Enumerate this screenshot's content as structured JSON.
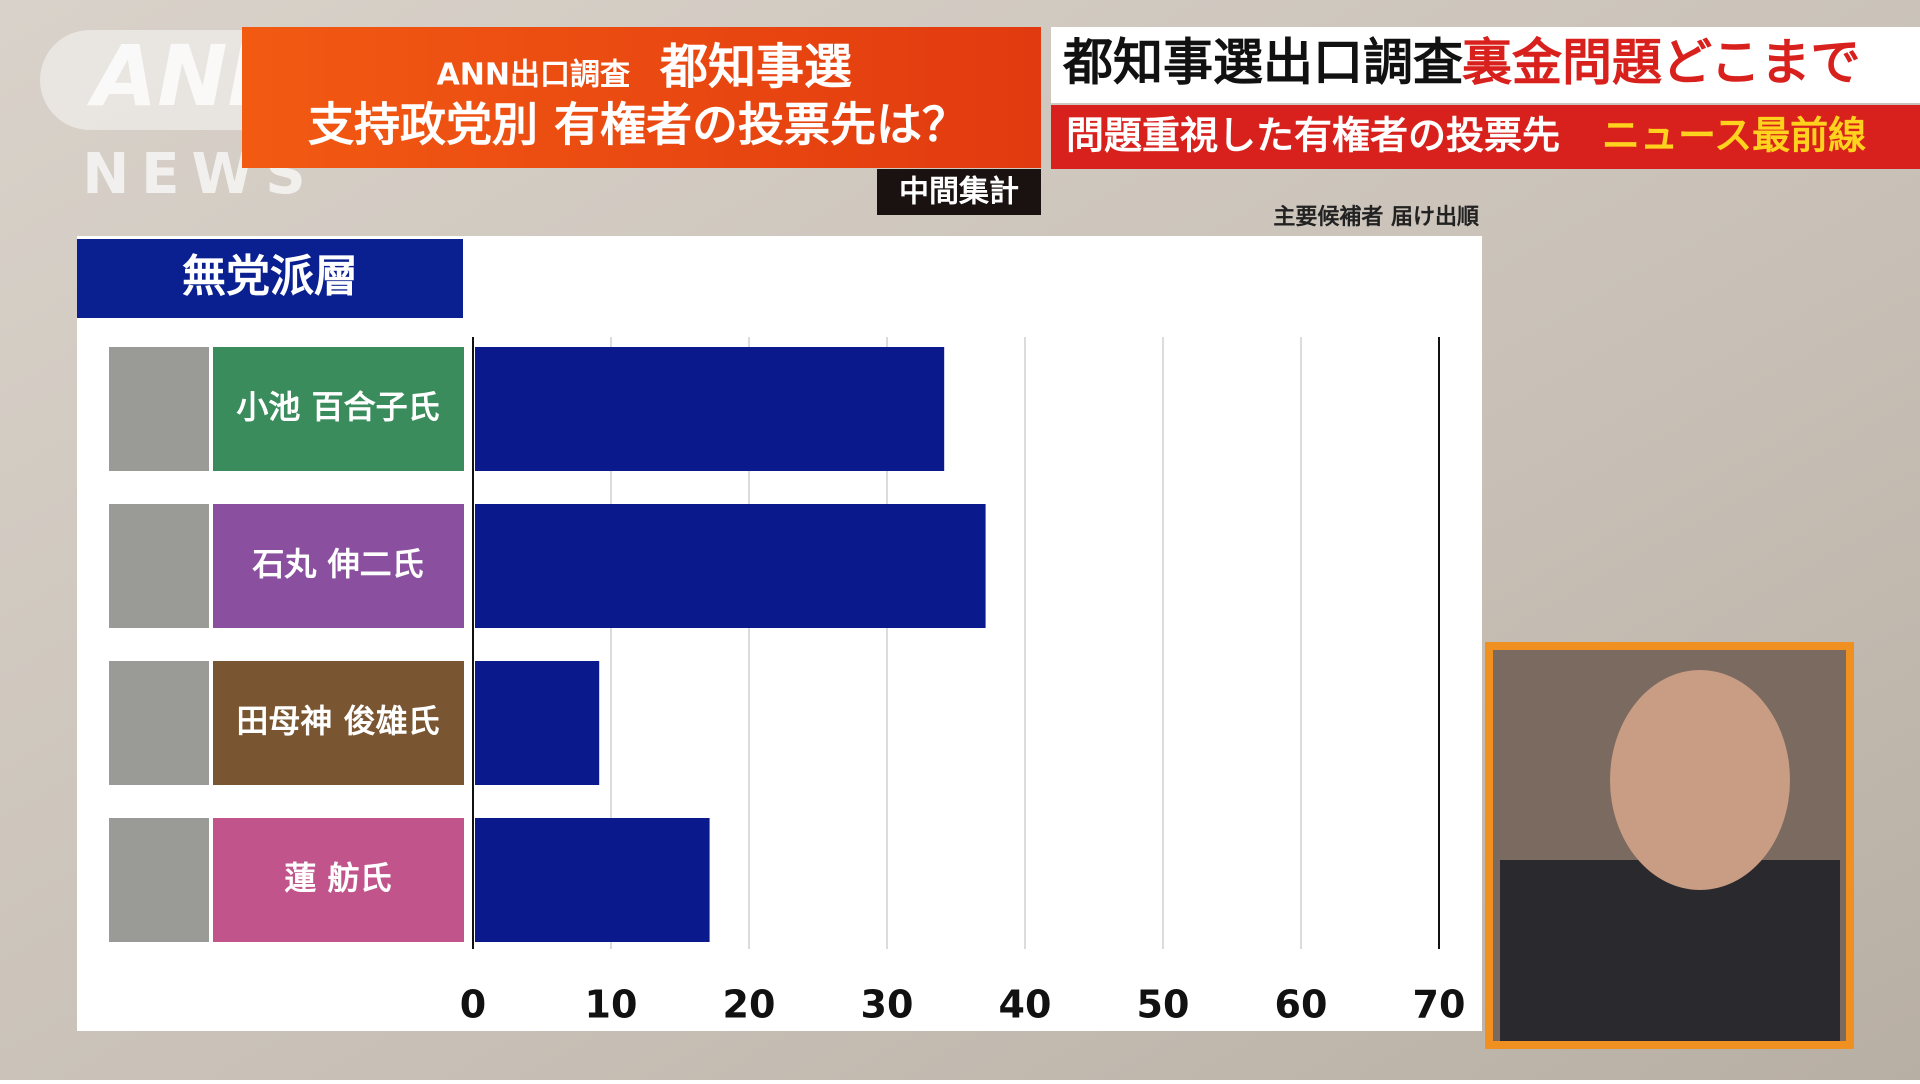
{
  "broadcast": {
    "logo_top": "ANN",
    "logo_bottom": "NEWS",
    "banner_line1_small": "ANN出口調査",
    "banner_line1_big": "都知事選",
    "banner_line2": "支持政党別 有権者の投票先は？",
    "interim": "中間集計",
    "topic_black": "都知事選出口調査",
    "topic_red": "裏金問題どこまで",
    "sub_white": "問題重視した有権者の投票先",
    "sub_yellow": "ニュース最前線"
  },
  "chart_data": {
    "type": "hbar",
    "title": "無党派層",
    "note": "主要候補者 届け出順",
    "categories": [
      "小池 百合子氏",
      "石丸 伸二氏",
      "田母神 俊雄氏",
      "蓮 舫氏"
    ],
    "category_colors": [
      "#3a8c5c",
      "#8a4f9e",
      "#7a5532",
      "#c2548c"
    ],
    "values": [
      34,
      37,
      9,
      17
    ],
    "color": "#0a1a8c",
    "xlim": [
      0,
      70
    ],
    "xticks": [
      0,
      10,
      20,
      30,
      40,
      50,
      60,
      70
    ],
    "grid": true
  }
}
